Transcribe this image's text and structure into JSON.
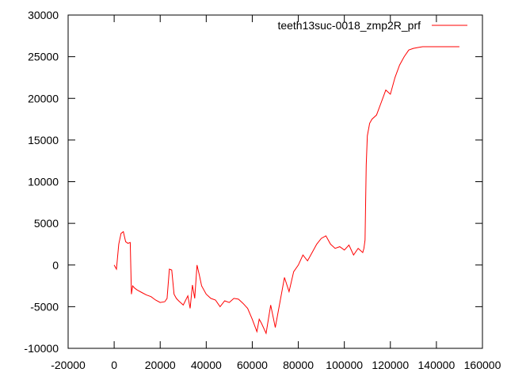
{
  "chart_data": {
    "type": "line",
    "title": "",
    "xlabel": "",
    "ylabel": "",
    "xlim": [
      -20000,
      160000
    ],
    "ylim": [
      -10000,
      30000
    ],
    "x_ticks": [
      -20000,
      0,
      20000,
      40000,
      60000,
      80000,
      100000,
      120000,
      140000,
      160000
    ],
    "y_ticks": [
      -10000,
      -5000,
      0,
      5000,
      10000,
      15000,
      20000,
      25000,
      30000
    ],
    "grid": false,
    "legend_position": "top-right",
    "series": [
      {
        "name": "teeth13suc-0018_zmp2R_prf",
        "color": "#ff0000",
        "x": [
          0,
          1000,
          2000,
          3000,
          4000,
          5000,
          6000,
          7000,
          7500,
          8000,
          9000,
          10000,
          12000,
          14000,
          16000,
          18000,
          20000,
          22000,
          23000,
          24000,
          25000,
          26000,
          27000,
          28000,
          30000,
          32000,
          33000,
          34000,
          35000,
          36000,
          37000,
          38000,
          40000,
          42000,
          44000,
          46000,
          48000,
          50000,
          52000,
          54000,
          56000,
          58000,
          60000,
          62000,
          63000,
          64000,
          66000,
          68000,
          70000,
          72000,
          73000,
          74000,
          76000,
          78000,
          80000,
          82000,
          84000,
          86000,
          88000,
          90000,
          92000,
          94000,
          96000,
          98000,
          100000,
          102000,
          104000,
          106000,
          108000,
          108500,
          109000,
          109500,
          110000,
          111000,
          112000,
          114000,
          116000,
          118000,
          120000,
          122000,
          124000,
          126000,
          128000,
          130000,
          132000,
          134000,
          136000,
          140000,
          145000,
          150000
        ],
        "y": [
          0,
          -500,
          2500,
          3800,
          4000,
          2800,
          2600,
          2700,
          -3500,
          -2500,
          -2800,
          -3000,
          -3300,
          -3600,
          -3800,
          -4200,
          -4500,
          -4400,
          -4000,
          -500,
          -600,
          -3500,
          -4000,
          -4300,
          -4800,
          -3700,
          -5200,
          -2400,
          -4000,
          0,
          -1200,
          -2500,
          -3500,
          -4000,
          -4200,
          -5000,
          -4300,
          -4500,
          -4000,
          -4100,
          -4600,
          -5200,
          -6500,
          -8000,
          -6500,
          -7000,
          -8200,
          -4800,
          -7500,
          -4500,
          -3000,
          -1500,
          -3200,
          -800,
          0,
          1200,
          500,
          1500,
          2500,
          3200,
          3500,
          2500,
          2000,
          2200,
          1800,
          2400,
          1200,
          2000,
          1500,
          2000,
          3000,
          12000,
          15500,
          17000,
          17500,
          18000,
          19500,
          21000,
          20500,
          22500,
          24000,
          25000,
          25800,
          26000,
          26100,
          26200,
          26200,
          26200,
          26200,
          26200
        ]
      }
    ]
  }
}
